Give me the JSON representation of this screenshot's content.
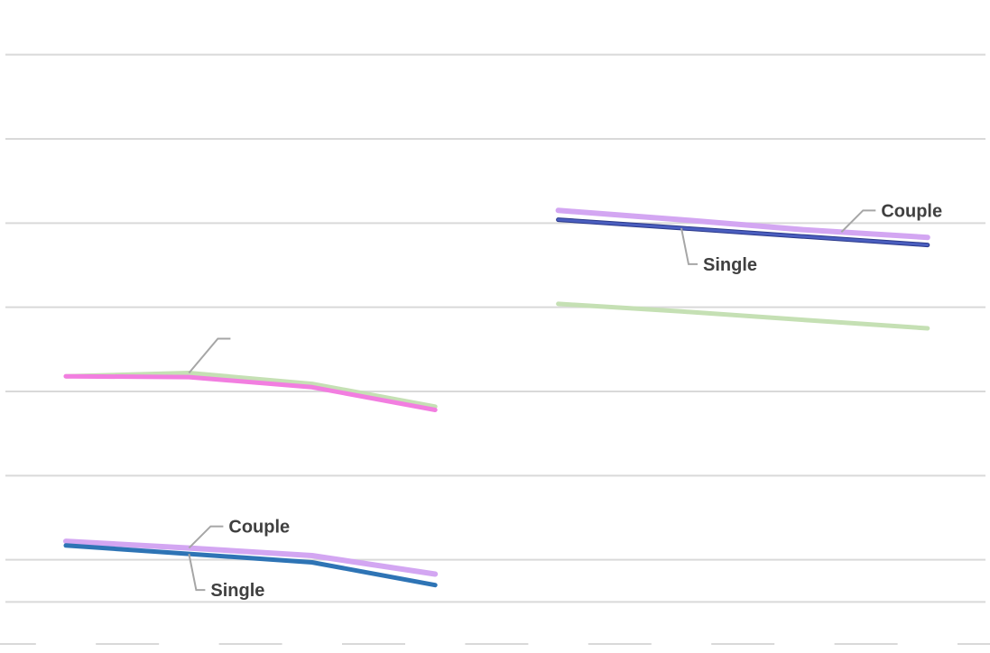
{
  "chart_data": {
    "type": "line",
    "title": "",
    "xlabel": "",
    "ylabel": "",
    "ylim": [
      0,
      7.5
    ],
    "grid": true,
    "y_gridlines": [
      0.5,
      1,
      2,
      3,
      4,
      5,
      6,
      7
    ],
    "x_slots": 8,
    "groups": [
      {
        "x": [
          0,
          1,
          2,
          3
        ],
        "series": [
          {
            "values": [
              3.18,
              3.22,
              3.09,
              2.82
            ],
            "color": "#c5e0b4",
            "width": 5
          },
          {
            "values": [
              3.18,
              3.17,
              3.05,
              2.78
            ],
            "color": "#f27ee0",
            "width": 5
          },
          {
            "name": "Couple",
            "values": [
              1.22,
              1.14,
              1.05,
              0.83
            ],
            "color": "#d3a6f2",
            "width": 6
          },
          {
            "name": "Single",
            "values": [
              1.17,
              1.07,
              0.97,
              0.7
            ],
            "color": "#2e74b5",
            "width": 5
          }
        ]
      },
      {
        "x": [
          4,
          5,
          6,
          7
        ],
        "series": [
          {
            "name": "Couple",
            "values": [
              5.15,
              5.04,
              4.92,
              4.83
            ],
            "color": "#d3a6f2",
            "width": 6
          },
          {
            "name": "Single",
            "values": [
              5.04,
              4.94,
              4.84,
              4.74
            ],
            "color": "#4a5ebf",
            "width": 3
          },
          {
            "values": [
              4.04,
              3.95,
              3.85,
              3.75
            ],
            "color": "#c5e0b4",
            "width": 5
          }
        ]
      }
    ],
    "annotations": [
      {
        "group": 0,
        "series": 0,
        "at_x": 1.0,
        "label": ""
      },
      {
        "group": 0,
        "series": 2,
        "at_x": 1.0,
        "label": "Couple",
        "side": "above"
      },
      {
        "group": 0,
        "series": 3,
        "at_x": 1.0,
        "label": "Single",
        "side": "below"
      },
      {
        "group": 1,
        "series": 0,
        "at_x": 6.3,
        "label": "Couple",
        "side": "above"
      },
      {
        "group": 1,
        "series": 1,
        "at_x": 5.0,
        "label": "Single",
        "side": "below"
      }
    ]
  }
}
